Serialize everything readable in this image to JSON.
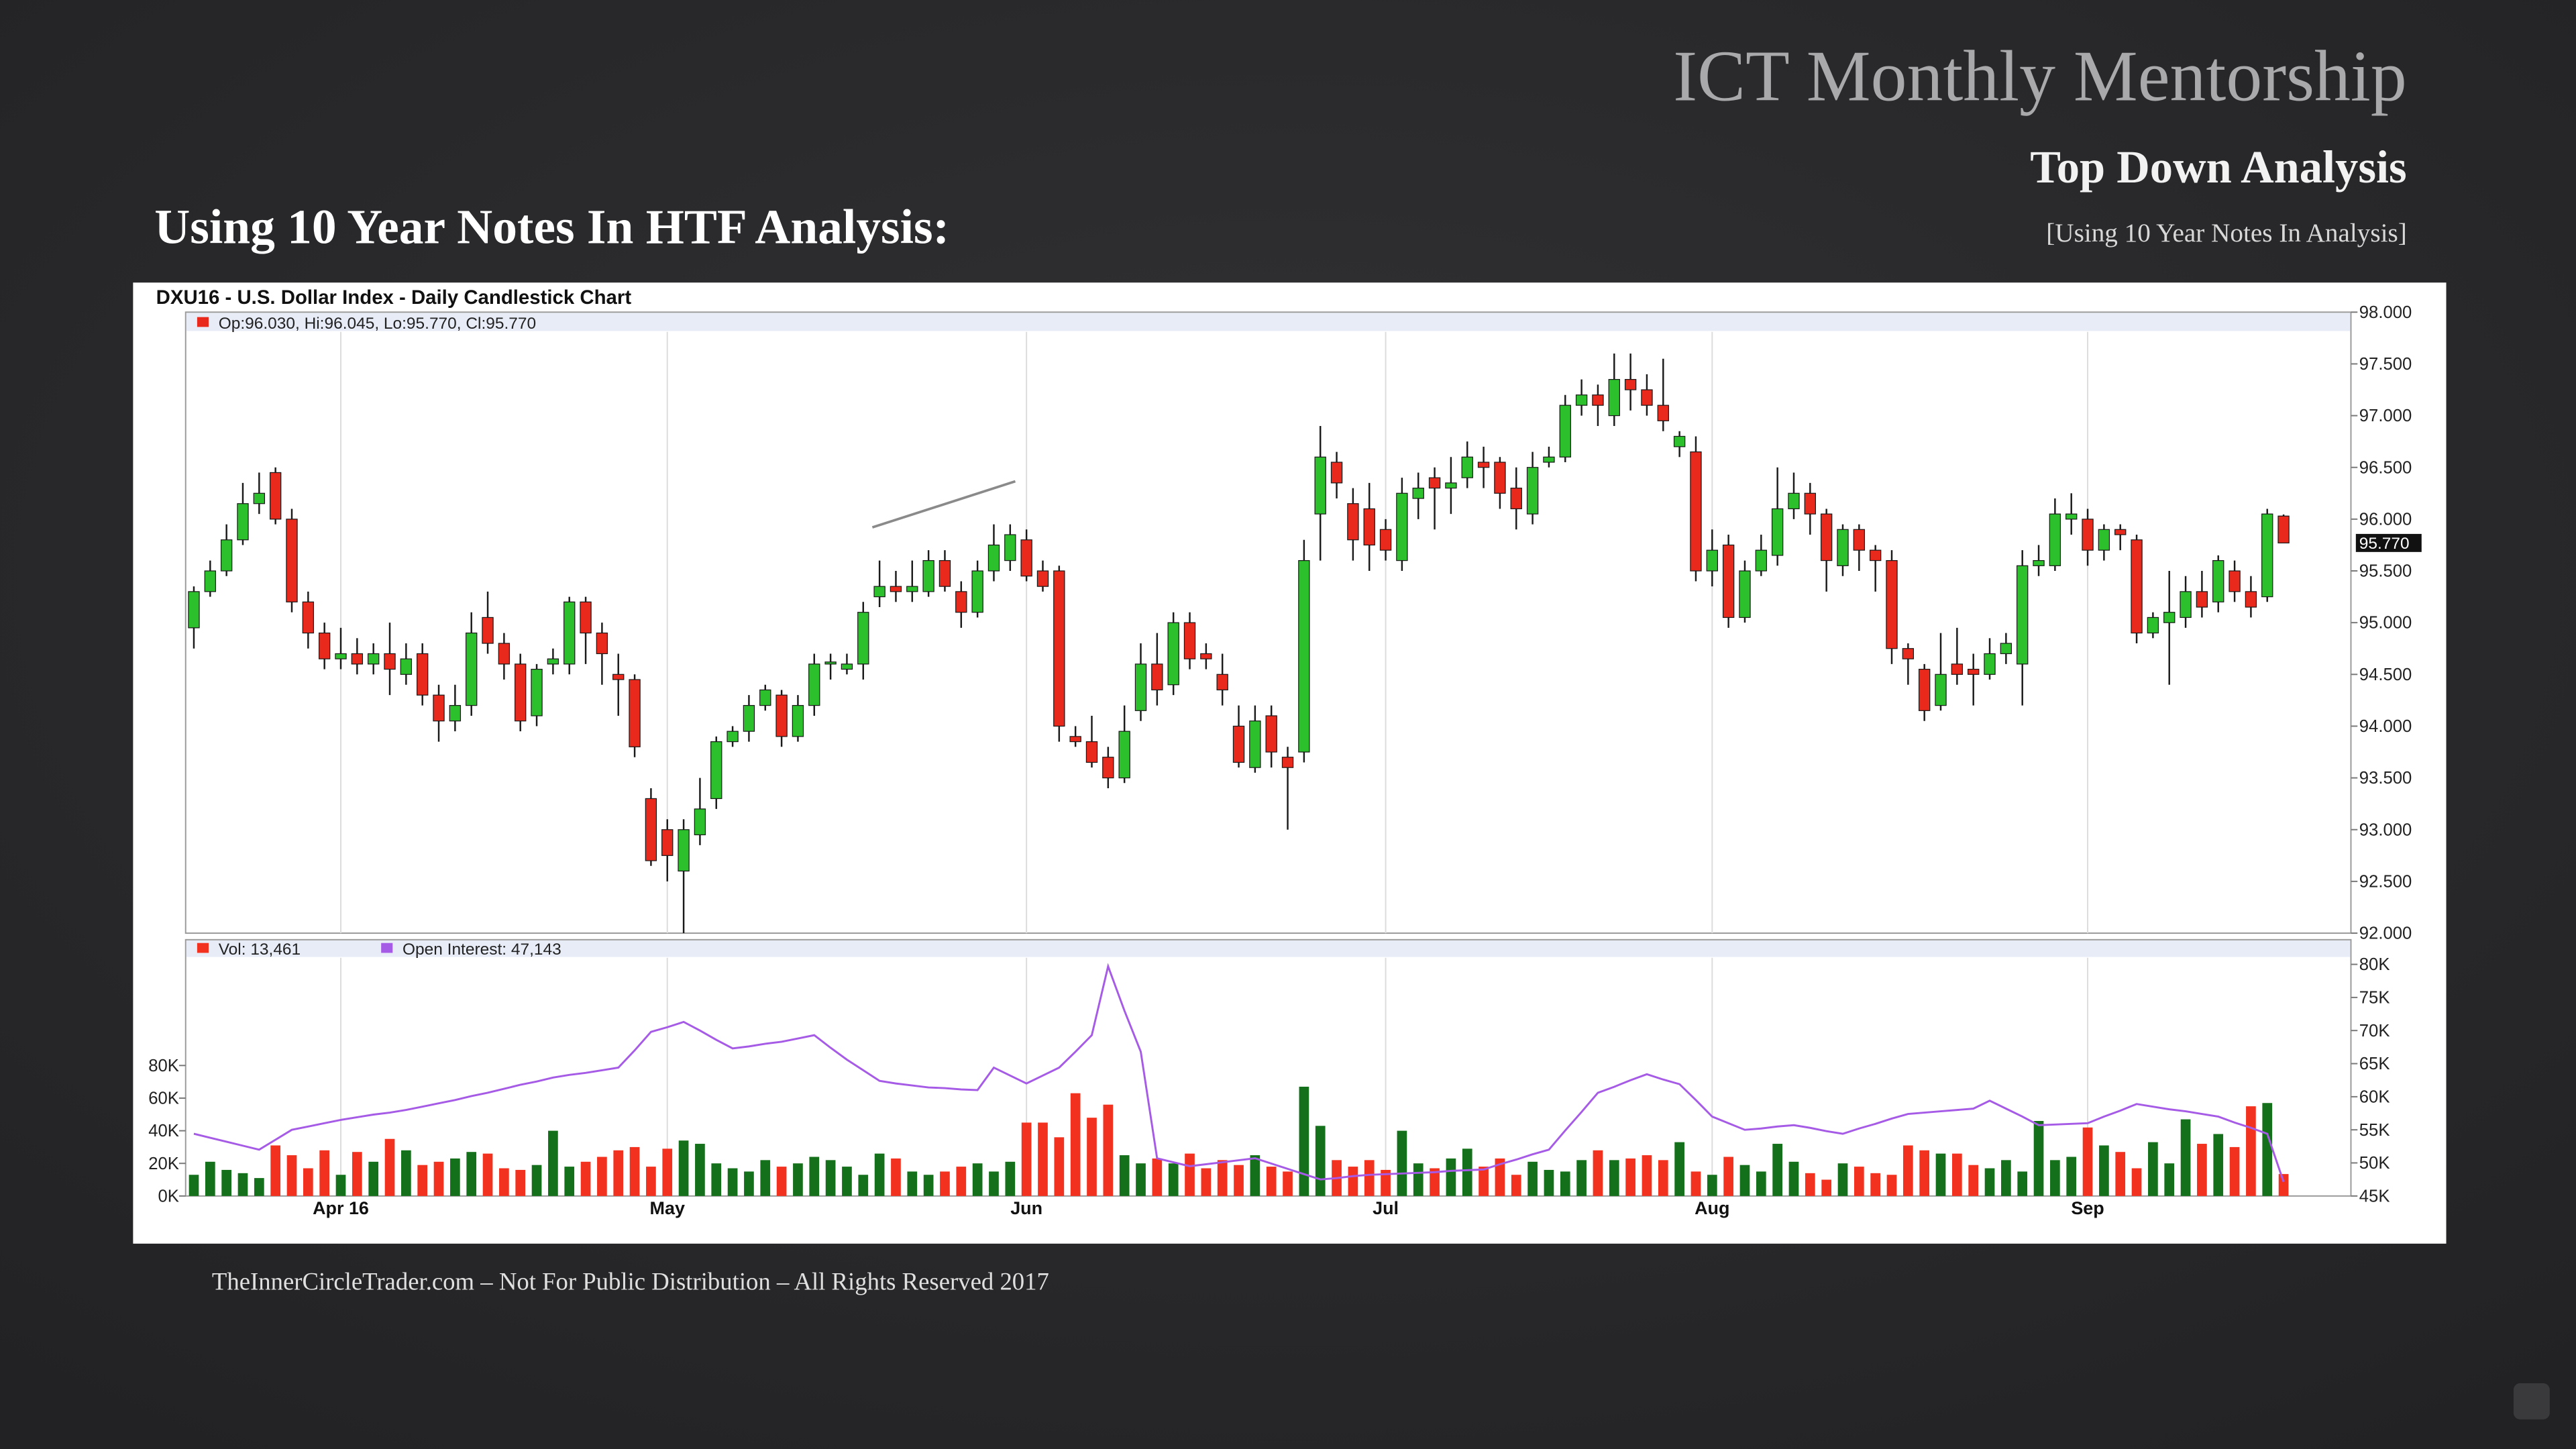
{
  "slide": {
    "title": "ICT Monthly Mentorship",
    "subtitle": "Top Down Analysis",
    "heading": "Using 10 Year Notes In HTF Analysis:",
    "note": "[Using 10 Year Notes In Analysis]",
    "footer": "TheInnerCircleTrader.com – Not For Public Distribution – All Rights Reserved 2017"
  },
  "chart_data": {
    "type": "candlestick",
    "title": "DXU16 - U.S. Dollar Index - Daily Candlestick Chart",
    "ohlc_legend": "Op:96.030, Hi:96.045, Lo:95.770, Cl:95.770",
    "categories": [
      null,
      null,
      null,
      null,
      null,
      null,
      null,
      null,
      null,
      "Apr 16",
      null,
      null,
      null,
      null,
      null,
      null,
      null,
      null,
      null,
      null,
      null,
      null,
      null,
      null,
      null,
      null,
      null,
      null,
      null,
      "May",
      null,
      null,
      null,
      null,
      null,
      null,
      null,
      null,
      null,
      null,
      null,
      null,
      null,
      null,
      null,
      null,
      null,
      null,
      null,
      null,
      null,
      "Jun",
      null,
      null,
      null,
      null,
      null,
      null,
      null,
      null,
      null,
      null,
      null,
      null,
      null,
      null,
      null,
      null,
      null,
      null,
      null,
      null,
      null,
      "Jul",
      null,
      null,
      null,
      null,
      null,
      null,
      null,
      null,
      null,
      null,
      null,
      null,
      null,
      null,
      null,
      null,
      null,
      null,
      null,
      "Aug",
      null,
      null,
      null,
      null,
      null,
      null,
      null,
      null,
      null,
      null,
      null,
      null,
      null,
      null,
      null,
      null,
      null,
      null,
      null,
      null,
      null,
      null,
      "Sep",
      null,
      null,
      null,
      null,
      null,
      null,
      null,
      null,
      null,
      null,
      null,
      null
    ],
    "open": [
      94.95,
      95.3,
      95.5,
      95.8,
      96.15,
      96.45,
      96.0,
      95.2,
      94.9,
      94.65,
      94.7,
      94.6,
      94.7,
      94.5,
      94.7,
      94.3,
      94.05,
      94.2,
      95.05,
      94.8,
      94.6,
      94.1,
      94.6,
      94.6,
      95.2,
      94.9,
      94.5,
      94.45,
      93.3,
      93.0,
      92.6,
      92.95,
      93.3,
      93.85,
      93.95,
      94.2,
      94.3,
      93.9,
      94.2,
      94.6,
      94.55,
      94.6,
      95.25,
      95.35,
      95.3,
      95.3,
      95.6,
      95.3,
      95.1,
      95.5,
      95.6,
      95.8,
      95.5,
      95.5,
      93.9,
      93.85,
      93.7,
      93.5,
      94.15,
      94.6,
      94.4,
      95.0,
      94.7,
      94.5,
      94.0,
      93.6,
      94.1,
      93.7,
      93.75,
      96.05,
      96.55,
      96.15,
      96.1,
      95.9,
      95.6,
      96.2,
      96.4,
      96.3,
      96.4,
      96.55,
      96.55,
      96.3,
      96.05,
      96.55,
      96.6,
      97.1,
      97.2,
      97.0,
      97.35,
      97.25,
      97.1,
      96.7,
      96.65,
      95.5,
      95.75,
      95.05,
      95.5,
      95.65,
      96.1,
      96.25,
      96.05,
      95.55,
      95.9,
      95.7,
      95.6,
      94.75,
      94.55,
      94.2,
      94.6,
      94.55,
      94.5,
      94.7,
      94.6,
      95.55,
      95.55,
      96.0,
      96.0,
      95.7,
      95.9,
      95.8,
      94.9,
      95.0,
      95.05,
      95.3,
      95.2,
      95.5,
      95.3,
      95.25,
      96.03
    ],
    "high": [
      95.35,
      95.6,
      95.95,
      96.35,
      96.45,
      96.5,
      96.1,
      95.3,
      95.0,
      94.95,
      94.85,
      94.8,
      95.0,
      94.8,
      94.8,
      94.4,
      94.4,
      95.1,
      95.3,
      94.9,
      94.7,
      94.6,
      94.75,
      95.25,
      95.25,
      95.0,
      94.7,
      94.5,
      93.4,
      93.1,
      93.1,
      93.5,
      93.9,
      94.0,
      94.3,
      94.4,
      94.35,
      94.3,
      94.7,
      94.7,
      94.7,
      95.2,
      95.6,
      95.5,
      95.6,
      95.7,
      95.7,
      95.4,
      95.6,
      95.95,
      95.95,
      95.9,
      95.6,
      95.55,
      94.0,
      94.1,
      93.8,
      94.2,
      94.8,
      94.9,
      95.1,
      95.1,
      94.8,
      94.7,
      94.2,
      94.2,
      94.2,
      93.8,
      95.8,
      96.9,
      96.65,
      96.3,
      96.35,
      96.0,
      96.4,
      96.45,
      96.5,
      96.6,
      96.75,
      96.7,
      96.6,
      96.5,
      96.65,
      96.7,
      97.2,
      97.35,
      97.3,
      97.6,
      97.6,
      97.4,
      97.55,
      96.85,
      96.8,
      95.9,
      95.85,
      95.6,
      95.85,
      96.5,
      96.45,
      96.35,
      96.1,
      95.95,
      95.95,
      95.75,
      95.7,
      94.8,
      94.6,
      94.9,
      94.95,
      94.7,
      94.85,
      94.9,
      95.7,
      95.75,
      96.2,
      96.25,
      96.1,
      95.95,
      95.95,
      95.85,
      95.1,
      95.5,
      95.45,
      95.5,
      95.65,
      95.6,
      95.45,
      96.1,
      96.045
    ],
    "low": [
      94.75,
      95.25,
      95.45,
      95.75,
      96.05,
      95.95,
      95.1,
      94.75,
      94.55,
      94.55,
      94.5,
      94.5,
      94.3,
      94.4,
      94.2,
      93.85,
      93.95,
      94.1,
      94.7,
      94.45,
      93.95,
      94.0,
      94.5,
      94.5,
      94.6,
      94.4,
      94.1,
      93.7,
      92.65,
      92.5,
      92.0,
      92.85,
      93.2,
      93.8,
      93.85,
      94.15,
      93.8,
      93.85,
      94.1,
      94.45,
      94.5,
      94.45,
      95.15,
      95.2,
      95.2,
      95.25,
      95.3,
      94.95,
      95.05,
      95.4,
      95.5,
      95.4,
      95.3,
      93.85,
      93.8,
      93.6,
      93.4,
      93.45,
      94.05,
      94.2,
      94.3,
      94.55,
      94.55,
      94.2,
      93.6,
      93.55,
      93.6,
      93.0,
      93.65,
      95.6,
      96.2,
      95.6,
      95.5,
      95.6,
      95.5,
      96.0,
      95.9,
      96.05,
      96.3,
      96.3,
      96.1,
      95.9,
      95.95,
      96.5,
      96.55,
      97.0,
      96.9,
      96.9,
      97.05,
      97.0,
      96.85,
      96.6,
      95.4,
      95.35,
      94.95,
      95.0,
      95.45,
      95.55,
      96.0,
      95.85,
      95.3,
      95.45,
      95.5,
      95.3,
      94.6,
      94.4,
      94.05,
      94.15,
      94.4,
      94.2,
      94.45,
      94.6,
      94.2,
      95.45,
      95.5,
      95.85,
      95.55,
      95.6,
      95.7,
      94.8,
      94.85,
      94.4,
      94.95,
      95.05,
      95.1,
      95.2,
      95.05,
      95.2,
      95.77
    ],
    "close": [
      95.3,
      95.5,
      95.8,
      96.15,
      96.25,
      96.0,
      95.2,
      94.9,
      94.65,
      94.7,
      94.6,
      94.7,
      94.55,
      94.65,
      94.3,
      94.05,
      94.2,
      94.9,
      94.8,
      94.6,
      94.05,
      94.55,
      94.65,
      95.2,
      94.9,
      94.7,
      94.45,
      93.8,
      92.7,
      92.75,
      93.0,
      93.2,
      93.85,
      93.95,
      94.2,
      94.35,
      93.9,
      94.2,
      94.6,
      94.62,
      94.6,
      95.1,
      95.35,
      95.3,
      95.35,
      95.6,
      95.35,
      95.1,
      95.5,
      95.75,
      95.85,
      95.45,
      95.35,
      94.0,
      93.85,
      93.65,
      93.5,
      93.95,
      94.6,
      94.35,
      95.0,
      94.65,
      94.65,
      94.35,
      93.65,
      94.05,
      93.75,
      93.6,
      95.6,
      96.6,
      96.35,
      95.8,
      95.75,
      95.7,
      96.25,
      96.3,
      96.3,
      96.35,
      96.6,
      96.5,
      96.25,
      96.1,
      96.5,
      96.6,
      97.1,
      97.2,
      97.1,
      97.35,
      97.25,
      97.1,
      96.95,
      96.8,
      95.5,
      95.7,
      95.05,
      95.5,
      95.7,
      96.1,
      96.25,
      96.05,
      95.6,
      95.9,
      95.7,
      95.6,
      94.75,
      94.65,
      94.15,
      94.5,
      94.5,
      94.5,
      94.7,
      94.8,
      95.55,
      95.6,
      96.05,
      96.05,
      95.7,
      95.9,
      95.85,
      94.9,
      95.05,
      95.1,
      95.3,
      95.15,
      95.6,
      95.3,
      95.15,
      96.05,
      95.77
    ],
    "up_color": "#2cc12c",
    "down_color": "#e8291c",
    "ylim": [
      92,
      98
    ],
    "yticks": [
      {
        "value": 92,
        "label": "92.000"
      },
      {
        "value": 92.5,
        "label": "92.500"
      },
      {
        "value": 93,
        "label": "93.000"
      },
      {
        "value": 93.5,
        "label": "93.500"
      },
      {
        "value": 94,
        "label": "94.000"
      },
      {
        "value": 94.5,
        "label": "94.500"
      },
      {
        "value": 95,
        "label": "95.000"
      },
      {
        "value": 95.5,
        "label": "95.500"
      },
      {
        "value": 96,
        "label": "96.000"
      },
      {
        "value": 96.5,
        "label": "96.500"
      },
      {
        "value": 97,
        "label": "97.000"
      },
      {
        "value": 97.5,
        "label": "97.500"
      },
      {
        "value": 98,
        "label": "98.000"
      }
    ],
    "price_tag": {
      "value": 95.77,
      "label": "95.770"
    },
    "grid": true,
    "volume": {
      "name": "Vol: 13,461",
      "up_color": "#14701a",
      "down_color": "#f2321f",
      "values": [
        13,
        21,
        16,
        14,
        11,
        31,
        25,
        17,
        28,
        13,
        27,
        21,
        35,
        28,
        19,
        21,
        23,
        27,
        26,
        17,
        16,
        19,
        40,
        18,
        21,
        24,
        28,
        30,
        18,
        29,
        34,
        32,
        20,
        17,
        15,
        22,
        18,
        20,
        24,
        22,
        18,
        13,
        26,
        23,
        15,
        13,
        15,
        18,
        20,
        15,
        21,
        45,
        45,
        36,
        63,
        48,
        56,
        25,
        20,
        23,
        20,
        26,
        17,
        22,
        19,
        25,
        18,
        15,
        67,
        43,
        22,
        18,
        22,
        16,
        40,
        20,
        17,
        23,
        29,
        18,
        23,
        13,
        21,
        16,
        15,
        22,
        28,
        22,
        23,
        25,
        22,
        33,
        15,
        13,
        24,
        19,
        15,
        32,
        21,
        14,
        10,
        20,
        18,
        14,
        13,
        31,
        28,
        26,
        26,
        19,
        17,
        22,
        15,
        46,
        22,
        24,
        42,
        31,
        27,
        17,
        33,
        20,
        47,
        32,
        38,
        30,
        55,
        57,
        13.461
      ],
      "ylim": [
        0,
        142
      ],
      "yticks": [
        {
          "value": 0,
          "label": "0K"
        },
        {
          "value": 20,
          "label": "20K"
        },
        {
          "value": 40,
          "label": "40K"
        },
        {
          "value": 60,
          "label": "60K"
        },
        {
          "value": 80,
          "label": "80K"
        }
      ]
    },
    "open_interest": {
      "name": "Open Interest: 47,143",
      "color": "#a65be6",
      "axis": "y2",
      "values": [
        54.4,
        53.8,
        53.2,
        52.6,
        52,
        53.5,
        55,
        55.5,
        56,
        56.5,
        56.9,
        57.3,
        57.6,
        58,
        58.5,
        59,
        59.5,
        60.1,
        60.6,
        61.2,
        61.8,
        62.3,
        62.9,
        63.3,
        63.6,
        64,
        64.4,
        67,
        69.8,
        70.5,
        71.3,
        70,
        68.6,
        67.3,
        67.6,
        68,
        68.3,
        68.8,
        69.3,
        67.4,
        65.6,
        64,
        62.4,
        62,
        61.7,
        61.4,
        61.3,
        61.1,
        61,
        64.4,
        63.2,
        62,
        63.2,
        64.4,
        66.8,
        69.3,
        79.7,
        73,
        66.8,
        50.7,
        50.1,
        49.5,
        49.8,
        50.1,
        50.4,
        50.7,
        49.9,
        49.1,
        48.3,
        47.5,
        47.7,
        48,
        48.2,
        48.3,
        48.4,
        48.5,
        48.6,
        48.8,
        48.9,
        49,
        49.8,
        50.5,
        51.3,
        52,
        54.9,
        57.7,
        60.6,
        61.5,
        62.5,
        63.4,
        62.6,
        61.9,
        59.5,
        57,
        56,
        55,
        55.2,
        55.5,
        55.7,
        55.3,
        54.8,
        54.4,
        55.2,
        55.9,
        56.7,
        57.4,
        57.6,
        57.8,
        58,
        58.2,
        59.4,
        58.2,
        57,
        55.7,
        55.8,
        55.9,
        56,
        57,
        57.9,
        58.9,
        58.5,
        58.1,
        57.8,
        57.4,
        57,
        56.1,
        55.3,
        54.4,
        47.143
      ]
    },
    "y2lim": [
      45,
      80
    ],
    "y2ticks": [
      {
        "value": 45,
        "label": "45K"
      },
      {
        "value": 50,
        "label": "50K"
      },
      {
        "value": 55,
        "label": "55K"
      },
      {
        "value": 60,
        "label": "60K"
      },
      {
        "value": 65,
        "label": "65K"
      },
      {
        "value": 70,
        "label": "70K"
      },
      {
        "value": 75,
        "label": "75K"
      },
      {
        "value": 80,
        "label": "80K"
      }
    ]
  }
}
